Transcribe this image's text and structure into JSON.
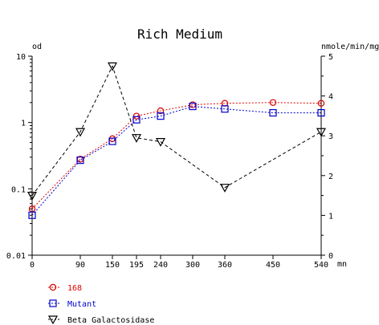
{
  "chart_data": {
    "type": "line",
    "title": "Rich Medium",
    "xlabel": "mn",
    "y_left_label": "od",
    "y_right_label": "nmole/min/mg",
    "x_ticks": [
      0,
      90,
      150,
      195,
      240,
      300,
      360,
      450,
      540
    ],
    "xlim": [
      0,
      540
    ],
    "y_left_scale": "log",
    "y_left_lim": [
      0.01,
      10
    ],
    "y_left_ticks": [
      "0.01",
      "0.1",
      "1",
      "10"
    ],
    "y_right_lim": [
      0,
      5
    ],
    "y_right_ticks": [
      "0",
      "1",
      "2",
      "3",
      "4",
      "5"
    ],
    "grid": false,
    "legend_position": "bottom-left",
    "series": [
      {
        "name": "168",
        "axis": "left",
        "marker": "circle",
        "color": "#dd0000",
        "points": [
          [
            0,
            0.05
          ],
          [
            90,
            0.28
          ],
          [
            150,
            0.57
          ],
          [
            195,
            1.25
          ],
          [
            240,
            1.5
          ],
          [
            300,
            1.85
          ],
          [
            360,
            1.95
          ],
          [
            450,
            2.0
          ],
          [
            540,
            1.95
          ]
        ]
      },
      {
        "name": "Mutant",
        "axis": "left",
        "marker": "square",
        "color": "#0000cc",
        "points": [
          [
            0,
            0.04
          ],
          [
            90,
            0.27
          ],
          [
            150,
            0.52
          ],
          [
            195,
            1.1
          ],
          [
            240,
            1.25
          ],
          [
            300,
            1.75
          ],
          [
            360,
            1.6
          ],
          [
            450,
            1.4
          ],
          [
            540,
            1.4
          ]
        ]
      },
      {
        "name": "Beta Galactosidase",
        "axis": "right",
        "marker": "triangle-down",
        "color": "#000000",
        "points": [
          [
            0,
            1.5
          ],
          [
            90,
            3.1
          ],
          [
            150,
            4.75
          ],
          [
            195,
            2.95
          ],
          [
            240,
            2.85
          ],
          [
            360,
            1.7
          ],
          [
            540,
            3.1
          ]
        ]
      }
    ]
  }
}
